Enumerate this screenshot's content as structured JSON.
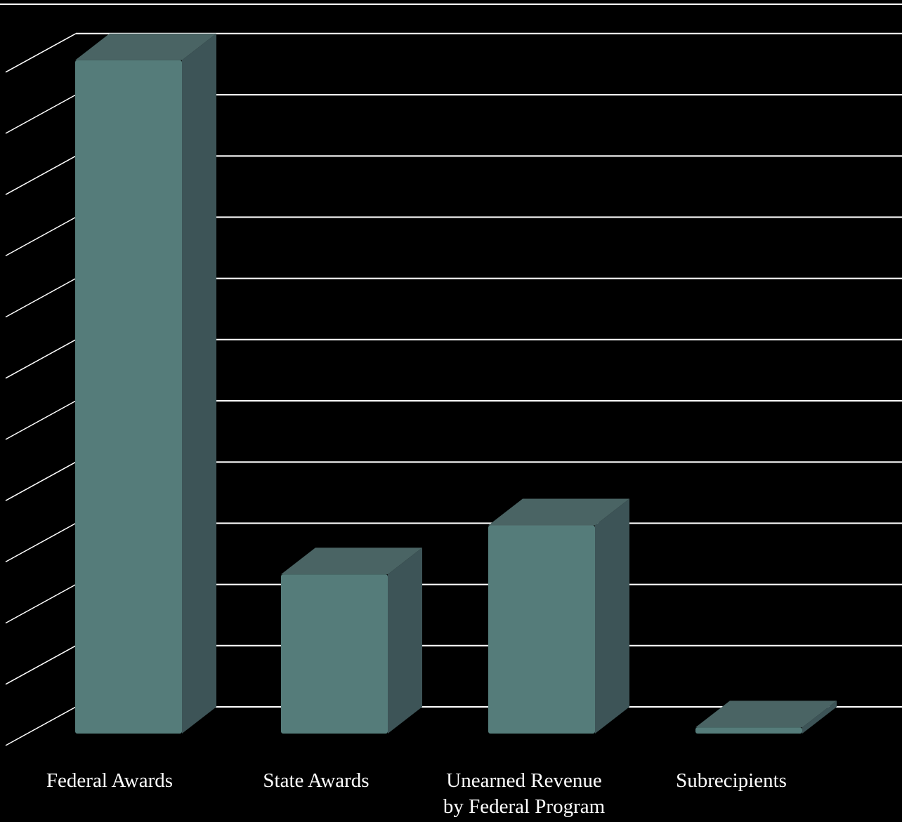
{
  "chart_data": {
    "type": "bar",
    "style": "3d-column",
    "categories": [
      [
        "Federal Awards"
      ],
      [
        "State Awards"
      ],
      [
        "Unearned Revenue",
        "by Federal Program"
      ],
      [
        "Subrecipients"
      ]
    ],
    "values": [
      11.0,
      2.6,
      3.4,
      0.1
    ],
    "ylim": [
      0,
      11
    ],
    "grid": true,
    "legend": "none",
    "colors": {
      "background": "#000000",
      "gridline": "#ffffff",
      "bar_front": "#557c7a",
      "bar_top": "#4a6464",
      "bar_side": "#3d5457"
    }
  }
}
